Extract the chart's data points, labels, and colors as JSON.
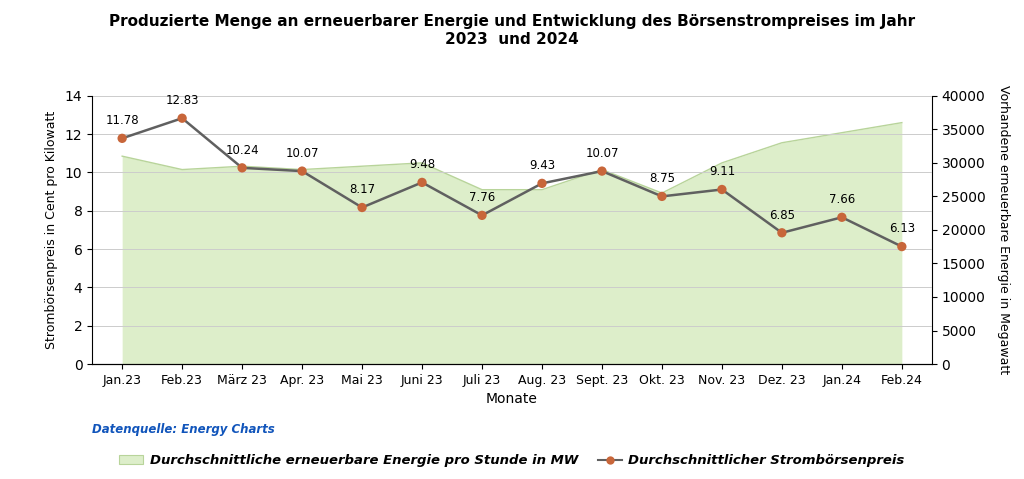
{
  "title": "Produzierte Menge an erneuerbarer Energie und Entwicklung des Börsenstrompreises im Jahr\n2023  und 2024",
  "months": [
    "Jan.23",
    "Feb.23",
    "März 23",
    "Apr. 23",
    "Mai 23",
    "Juni 23",
    "Juli 23",
    "Aug. 23",
    "Sept. 23",
    "Okt. 23",
    "Nov. 23",
    "Dez. 23",
    "Jan.24",
    "Feb.24"
  ],
  "price": [
    11.78,
    12.83,
    10.24,
    10.07,
    8.17,
    9.48,
    7.76,
    9.43,
    10.07,
    8.75,
    9.11,
    6.85,
    7.66,
    6.13
  ],
  "energy_mw": [
    31000,
    29000,
    29500,
    29000,
    29500,
    30000,
    26000,
    26000,
    29000,
    25500,
    30000,
    33000,
    34500,
    36000
  ],
  "price_color": "#c8663a",
  "price_line_color": "#606060",
  "energy_fill_color": "#ddeeca",
  "energy_line_color": "#b8d49a",
  "ylabel_left": "Strombörsenpreis in Cent pro Kilowatt",
  "ylabel_right": "Vorhandene erneuerbare Energie in Megawatt",
  "xlabel": "Monate",
  "datasource": "Datenquelle: Energy Charts",
  "legend_area": "Durchschnittliche erneuerbare Energie pro Stunde in MW",
  "legend_line": "Durchschnittlicher Strombörsenpreis",
  "ylim_left": [
    0,
    14
  ],
  "ylim_right": [
    0,
    40000
  ],
  "yticks_left": [
    0,
    2,
    4,
    6,
    8,
    10,
    12,
    14
  ],
  "yticks_right": [
    0,
    5000,
    10000,
    15000,
    20000,
    25000,
    30000,
    35000,
    40000
  ],
  "background_color": "#ffffff",
  "grid_color": "#cccccc",
  "title_fontsize": 11,
  "axis_fontsize": 9,
  "label_fontsize": 8.5
}
